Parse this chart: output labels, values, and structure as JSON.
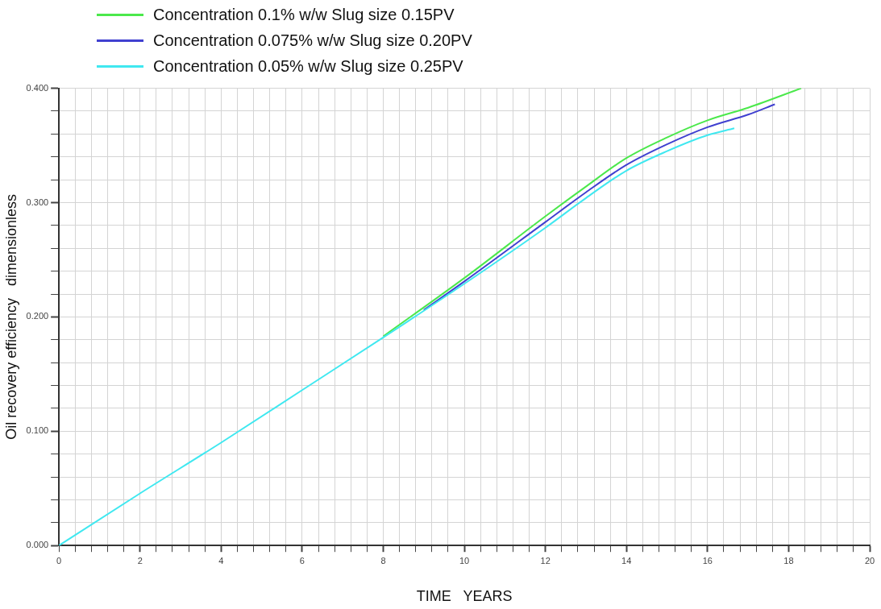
{
  "chart_data": {
    "type": "line",
    "xlabel": "TIME   YEARS",
    "ylabel": "Oil recovery efficiency   dimensionless",
    "legend": "top left",
    "grid": true,
    "marker": "none",
    "line_style": "solid",
    "xlim": [
      0,
      20
    ],
    "ylim": [
      0,
      0.4
    ],
    "xticks": [
      0,
      {
        "value": 0.4,
        "label": null
      },
      {
        "value": 0.8,
        "label": null
      },
      {
        "value": 1.2,
        "label": null
      },
      {
        "value": 1.6,
        "label": null
      },
      2,
      {
        "value": 2.4,
        "label": null
      },
      {
        "value": 2.8,
        "label": null
      },
      {
        "value": 3.2,
        "label": null
      },
      {
        "value": 3.6,
        "label": null
      },
      4,
      {
        "value": 4.4,
        "label": null
      },
      {
        "value": 4.8,
        "label": null
      },
      {
        "value": 5.2,
        "label": null
      },
      {
        "value": 5.6,
        "label": null
      },
      6,
      {
        "value": 6.4,
        "label": null
      },
      {
        "value": 6.8,
        "label": null
      },
      {
        "value": 7.2,
        "label": null
      },
      {
        "value": 7.6,
        "label": null
      },
      8,
      {
        "value": 8.4,
        "label": null
      },
      {
        "value": 8.8,
        "label": null
      },
      {
        "value": 9.2,
        "label": null
      },
      {
        "value": 9.6,
        "label": null
      },
      10,
      {
        "value": 10.4,
        "label": null
      },
      {
        "value": 10.8,
        "label": null
      },
      {
        "value": 11.2,
        "label": null
      },
      {
        "value": 11.6,
        "label": null
      },
      12,
      {
        "value": 12.4,
        "label": null
      },
      {
        "value": 12.8,
        "label": null
      },
      {
        "value": 13.2,
        "label": null
      },
      {
        "value": 13.6,
        "label": null
      },
      14,
      {
        "value": 14.4,
        "label": null
      },
      {
        "value": 14.8,
        "label": null
      },
      {
        "value": 15.2,
        "label": null
      },
      {
        "value": 15.6,
        "label": null
      },
      16,
      {
        "value": 16.4,
        "label": null
      },
      {
        "value": 16.8,
        "label": null
      },
      {
        "value": 17.2,
        "label": null
      },
      {
        "value": 17.6,
        "label": null
      },
      18,
      {
        "value": 18.4,
        "label": null
      },
      {
        "value": 18.8,
        "label": null
      },
      {
        "value": 19.2,
        "label": null
      },
      {
        "value": 19.6,
        "label": null
      },
      20
    ],
    "yticks": [
      {
        "value": 0,
        "label": "0.000"
      },
      {
        "value": 0.02,
        "label": null
      },
      {
        "value": 0.04,
        "label": null
      },
      {
        "value": 0.06,
        "label": null
      },
      {
        "value": 0.08,
        "label": null
      },
      {
        "value": 0.1,
        "label": "0.100"
      },
      {
        "value": 0.12,
        "label": null
      },
      {
        "value": 0.14,
        "label": null
      },
      {
        "value": 0.16,
        "label": null
      },
      {
        "value": 0.18,
        "label": null
      },
      {
        "value": 0.2,
        "label": "0.200"
      },
      {
        "value": 0.22,
        "label": null
      },
      {
        "value": 0.24,
        "label": null
      },
      {
        "value": 0.26,
        "label": null
      },
      {
        "value": 0.28,
        "label": null
      },
      {
        "value": 0.3,
        "label": "0.300"
      },
      {
        "value": 0.32,
        "label": null
      },
      {
        "value": 0.34,
        "label": null
      },
      {
        "value": 0.36,
        "label": null
      },
      {
        "value": 0.38,
        "label": null
      },
      {
        "value": 0.4,
        "label": "0.400"
      }
    ],
    "series": [
      {
        "name": "Concentration 0.1% w/w Slug size 0.15PV",
        "color": "#4be84b",
        "x": [
          8,
          10,
          12,
          13,
          14,
          15,
          16,
          17,
          18.31
        ],
        "values": [
          0.183,
          0.234,
          0.288,
          0.314,
          0.339,
          0.357,
          0.372,
          0.383,
          0.4
        ]
      },
      {
        "name": "Concentration 0.075% w/w Slug size 0.20PV",
        "color": "#4040d0",
        "x": [
          9,
          10,
          12,
          13,
          14,
          15,
          16,
          17,
          17.66
        ],
        "values": [
          0.206,
          0.231,
          0.283,
          0.309,
          0.333,
          0.351,
          0.366,
          0.377,
          0.386
        ]
      },
      {
        "name": "Concentration 0.05% w/w Slug size 0.25PV",
        "color": "#40e8f0",
        "x": [
          0,
          2,
          4,
          6,
          8,
          10,
          12,
          13,
          14,
          15,
          16,
          16.66
        ],
        "values": [
          0,
          0.0456,
          0.09,
          0.136,
          0.182,
          0.229,
          0.278,
          0.304,
          0.328,
          0.345,
          0.359,
          0.365
        ]
      }
    ]
  }
}
